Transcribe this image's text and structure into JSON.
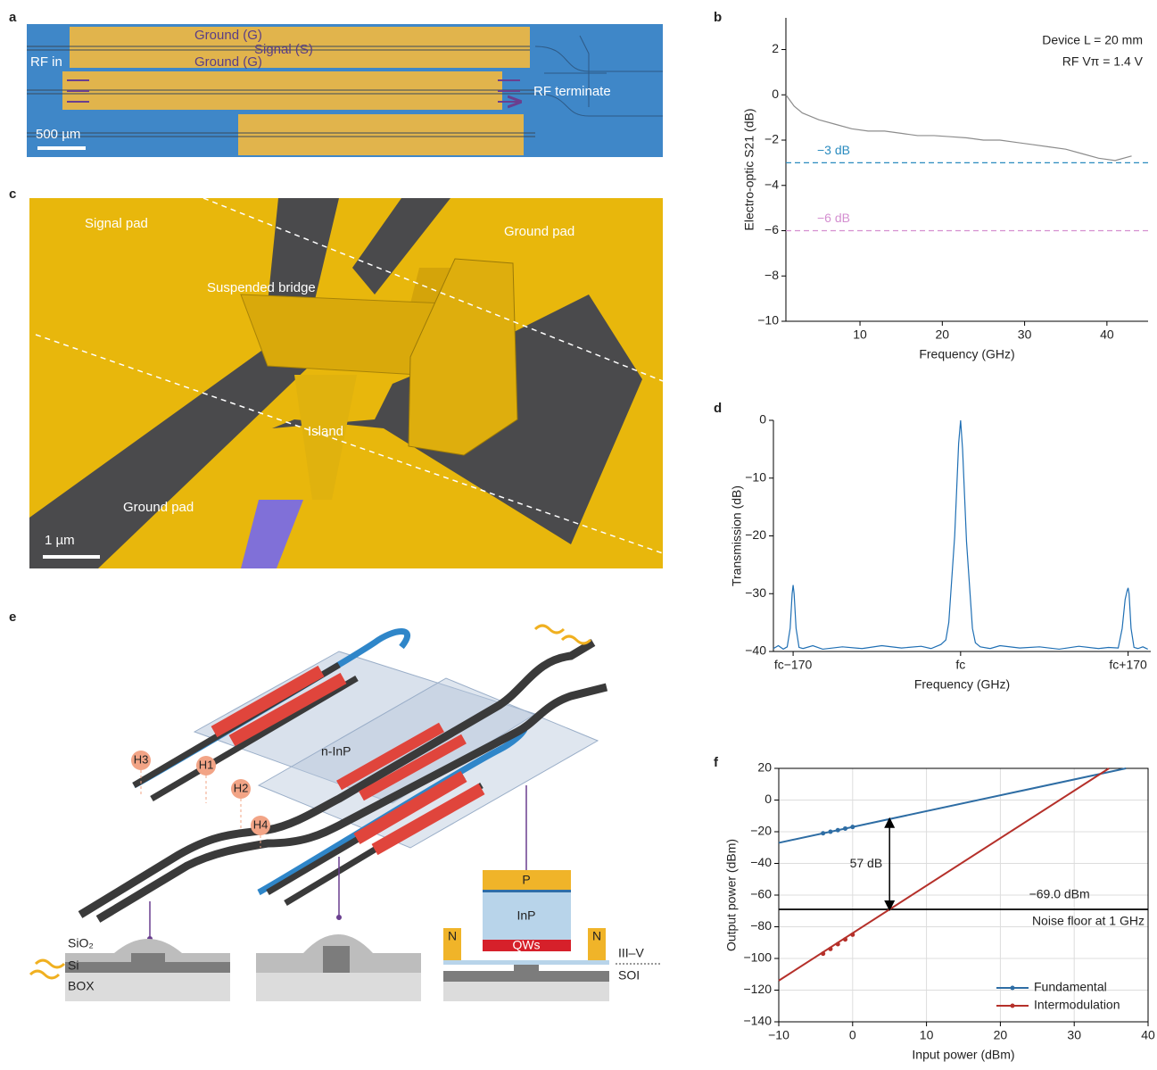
{
  "panel_labels": [
    "a",
    "b",
    "c",
    "d",
    "e",
    "f"
  ],
  "panel_a": {
    "labels": [
      "Ground (G)",
      "Signal (S)",
      "Ground (G)",
      "RF in",
      "RF terminate"
    ],
    "scale_bar": "500 µm"
  },
  "panel_c": {
    "labels": [
      "Signal pad",
      "Ground pad",
      "Suspended bridge",
      "Island",
      "Ground pad"
    ],
    "scale_bar": "1 µm"
  },
  "panel_e": {
    "top_label": "n-InP",
    "heaters": [
      "H3",
      "H1",
      "H2",
      "H4"
    ],
    "layers": [
      "SiO₂",
      "Si",
      "BOX"
    ],
    "stack": [
      "P",
      "InP",
      "QWs",
      "N",
      "N"
    ],
    "platform": [
      "III–V",
      "SOI"
    ]
  },
  "chart_data": [
    {
      "type": "line",
      "x_label": "Frequency (GHz)",
      "y_label": "Electro-optic S21 (dB)",
      "annotations": [
        "Device L = 20 mm",
        "RF Vπ = 1.4 V"
      ],
      "xlim": [
        1,
        45
      ],
      "xticks": [
        10,
        20,
        30,
        40
      ],
      "ylim": [
        -10,
        3.4
      ],
      "yticks": [
        {
          "value": -10,
          "label": "−10"
        },
        {
          "value": -8,
          "label": "−8"
        },
        {
          "value": -6,
          "label": "−6"
        },
        {
          "value": -4,
          "label": "−4"
        },
        {
          "value": -2,
          "label": "−2"
        },
        0,
        2
      ],
      "series": [
        {
          "color": "#8c8c8c",
          "x": [
            1,
            2,
            3,
            5,
            7,
            9,
            11,
            13,
            15,
            17,
            19,
            21,
            23,
            25,
            27,
            29,
            31,
            33,
            35,
            37,
            39,
            41,
            43
          ],
          "values": [
            0,
            -0.5,
            -0.8,
            -1.1,
            -1.3,
            -1.5,
            -1.6,
            -1.6,
            -1.7,
            -1.8,
            -1.8,
            -1.85,
            -1.9,
            -2,
            -2,
            -2.1,
            -2.2,
            -2.3,
            -2.4,
            -2.6,
            -2.8,
            -2.9,
            -2.7
          ]
        }
      ],
      "hlines": [
        {
          "value": -3,
          "label": "−3 dB",
          "color": "#2a8bbf",
          "dashed": true
        },
        {
          "value": -6,
          "label": "−6 dB",
          "color": "#d48fd0",
          "dashed": true
        }
      ]
    },
    {
      "type": "line",
      "x_label": "Frequency (GHz)",
      "y_label": "Transmission (dB)",
      "xlim": [
        -190,
        193
      ],
      "xticks": [
        {
          "value": -170,
          "label": "fc−170"
        },
        {
          "value": 0,
          "label": "fc"
        },
        {
          "value": 170,
          "label": "fc+170"
        }
      ],
      "ylim": [
        -40,
        0
      ],
      "yticks": [
        {
          "value": -40,
          "label": "−40"
        },
        {
          "value": -30,
          "label": "−30"
        },
        {
          "value": -20,
          "label": "−20"
        },
        {
          "value": -10,
          "label": "−10"
        },
        0
      ],
      "series": [
        {
          "color": "#1f6fb4",
          "x": [
            -190,
            -185,
            -180,
            -176,
            -173,
            -171,
            -170,
            -169,
            -167,
            -164,
            -160,
            -150,
            -140,
            -120,
            -100,
            -80,
            -60,
            -40,
            -30,
            -20,
            -15,
            -12,
            -10,
            -8,
            -6,
            -4,
            -2,
            0,
            2,
            4,
            6,
            8,
            10,
            12,
            15,
            20,
            30,
            40,
            60,
            80,
            100,
            120,
            140,
            150,
            160,
            164,
            167,
            169,
            170,
            171,
            173,
            176,
            180,
            185,
            190
          ],
          "values": [
            -39.5,
            -39,
            -39.6,
            -39.2,
            -36,
            -30,
            -28.5,
            -30,
            -36,
            -39.3,
            -39.5,
            -39,
            -39.6,
            -39.2,
            -39.5,
            -39,
            -39.4,
            -39.1,
            -39.5,
            -38.8,
            -38,
            -35,
            -30,
            -25,
            -20,
            -12,
            -4,
            0,
            -5,
            -13,
            -21,
            -26,
            -31,
            -36,
            -38.5,
            -39.2,
            -39.5,
            -39,
            -39.4,
            -39.2,
            -39.6,
            -39.1,
            -39.5,
            -39.3,
            -39.4,
            -36,
            -31,
            -29.5,
            -29,
            -30,
            -36,
            -39.3,
            -39.5,
            -39.2,
            -39.6
          ]
        }
      ]
    },
    {
      "type": "line",
      "x_label": "Input power (dBm)",
      "y_label": "Output power (dBm)",
      "grid": true,
      "legend": "lower right",
      "xlim": [
        -10,
        40
      ],
      "xticks": [
        {
          "value": -10,
          "label": "−10"
        },
        0,
        10,
        20,
        30,
        40
      ],
      "ylim": [
        -140,
        20
      ],
      "yticks": [
        {
          "value": -140,
          "label": "−140"
        },
        {
          "value": -120,
          "label": "−120"
        },
        {
          "value": -100,
          "label": "−100"
        },
        {
          "value": -80,
          "label": "−80"
        },
        {
          "value": -60,
          "label": "−60"
        },
        {
          "value": -40,
          "label": "−40"
        },
        {
          "value": -20,
          "label": "−20"
        },
        0,
        20
      ],
      "series": [
        {
          "name": "Fundamental",
          "color": "#2e6da4",
          "x": [
            -10,
            37
          ],
          "values": [
            -27,
            20
          ],
          "points_x": [
            -4,
            -3,
            -2,
            -1,
            0
          ],
          "points": [
            -21,
            -20,
            -19,
            -18,
            -17
          ]
        },
        {
          "name": "Intermodulation",
          "color": "#b5302a",
          "x": [
            -10,
            34.7
          ],
          "values": [
            -114,
            20
          ],
          "points_x": [
            -4,
            -3,
            -2,
            -1,
            0
          ],
          "points": [
            -97,
            -94,
            -91,
            -88,
            -85
          ]
        }
      ],
      "hlines": [
        {
          "value": -69,
          "label": "Noise floor at 1 GHz",
          "color": "#000"
        }
      ],
      "annotations": [
        "−69.0 dBm"
      ],
      "arrow": {
        "x": 5,
        "from": -12,
        "to": -69,
        "label": "57 dB"
      }
    }
  ]
}
